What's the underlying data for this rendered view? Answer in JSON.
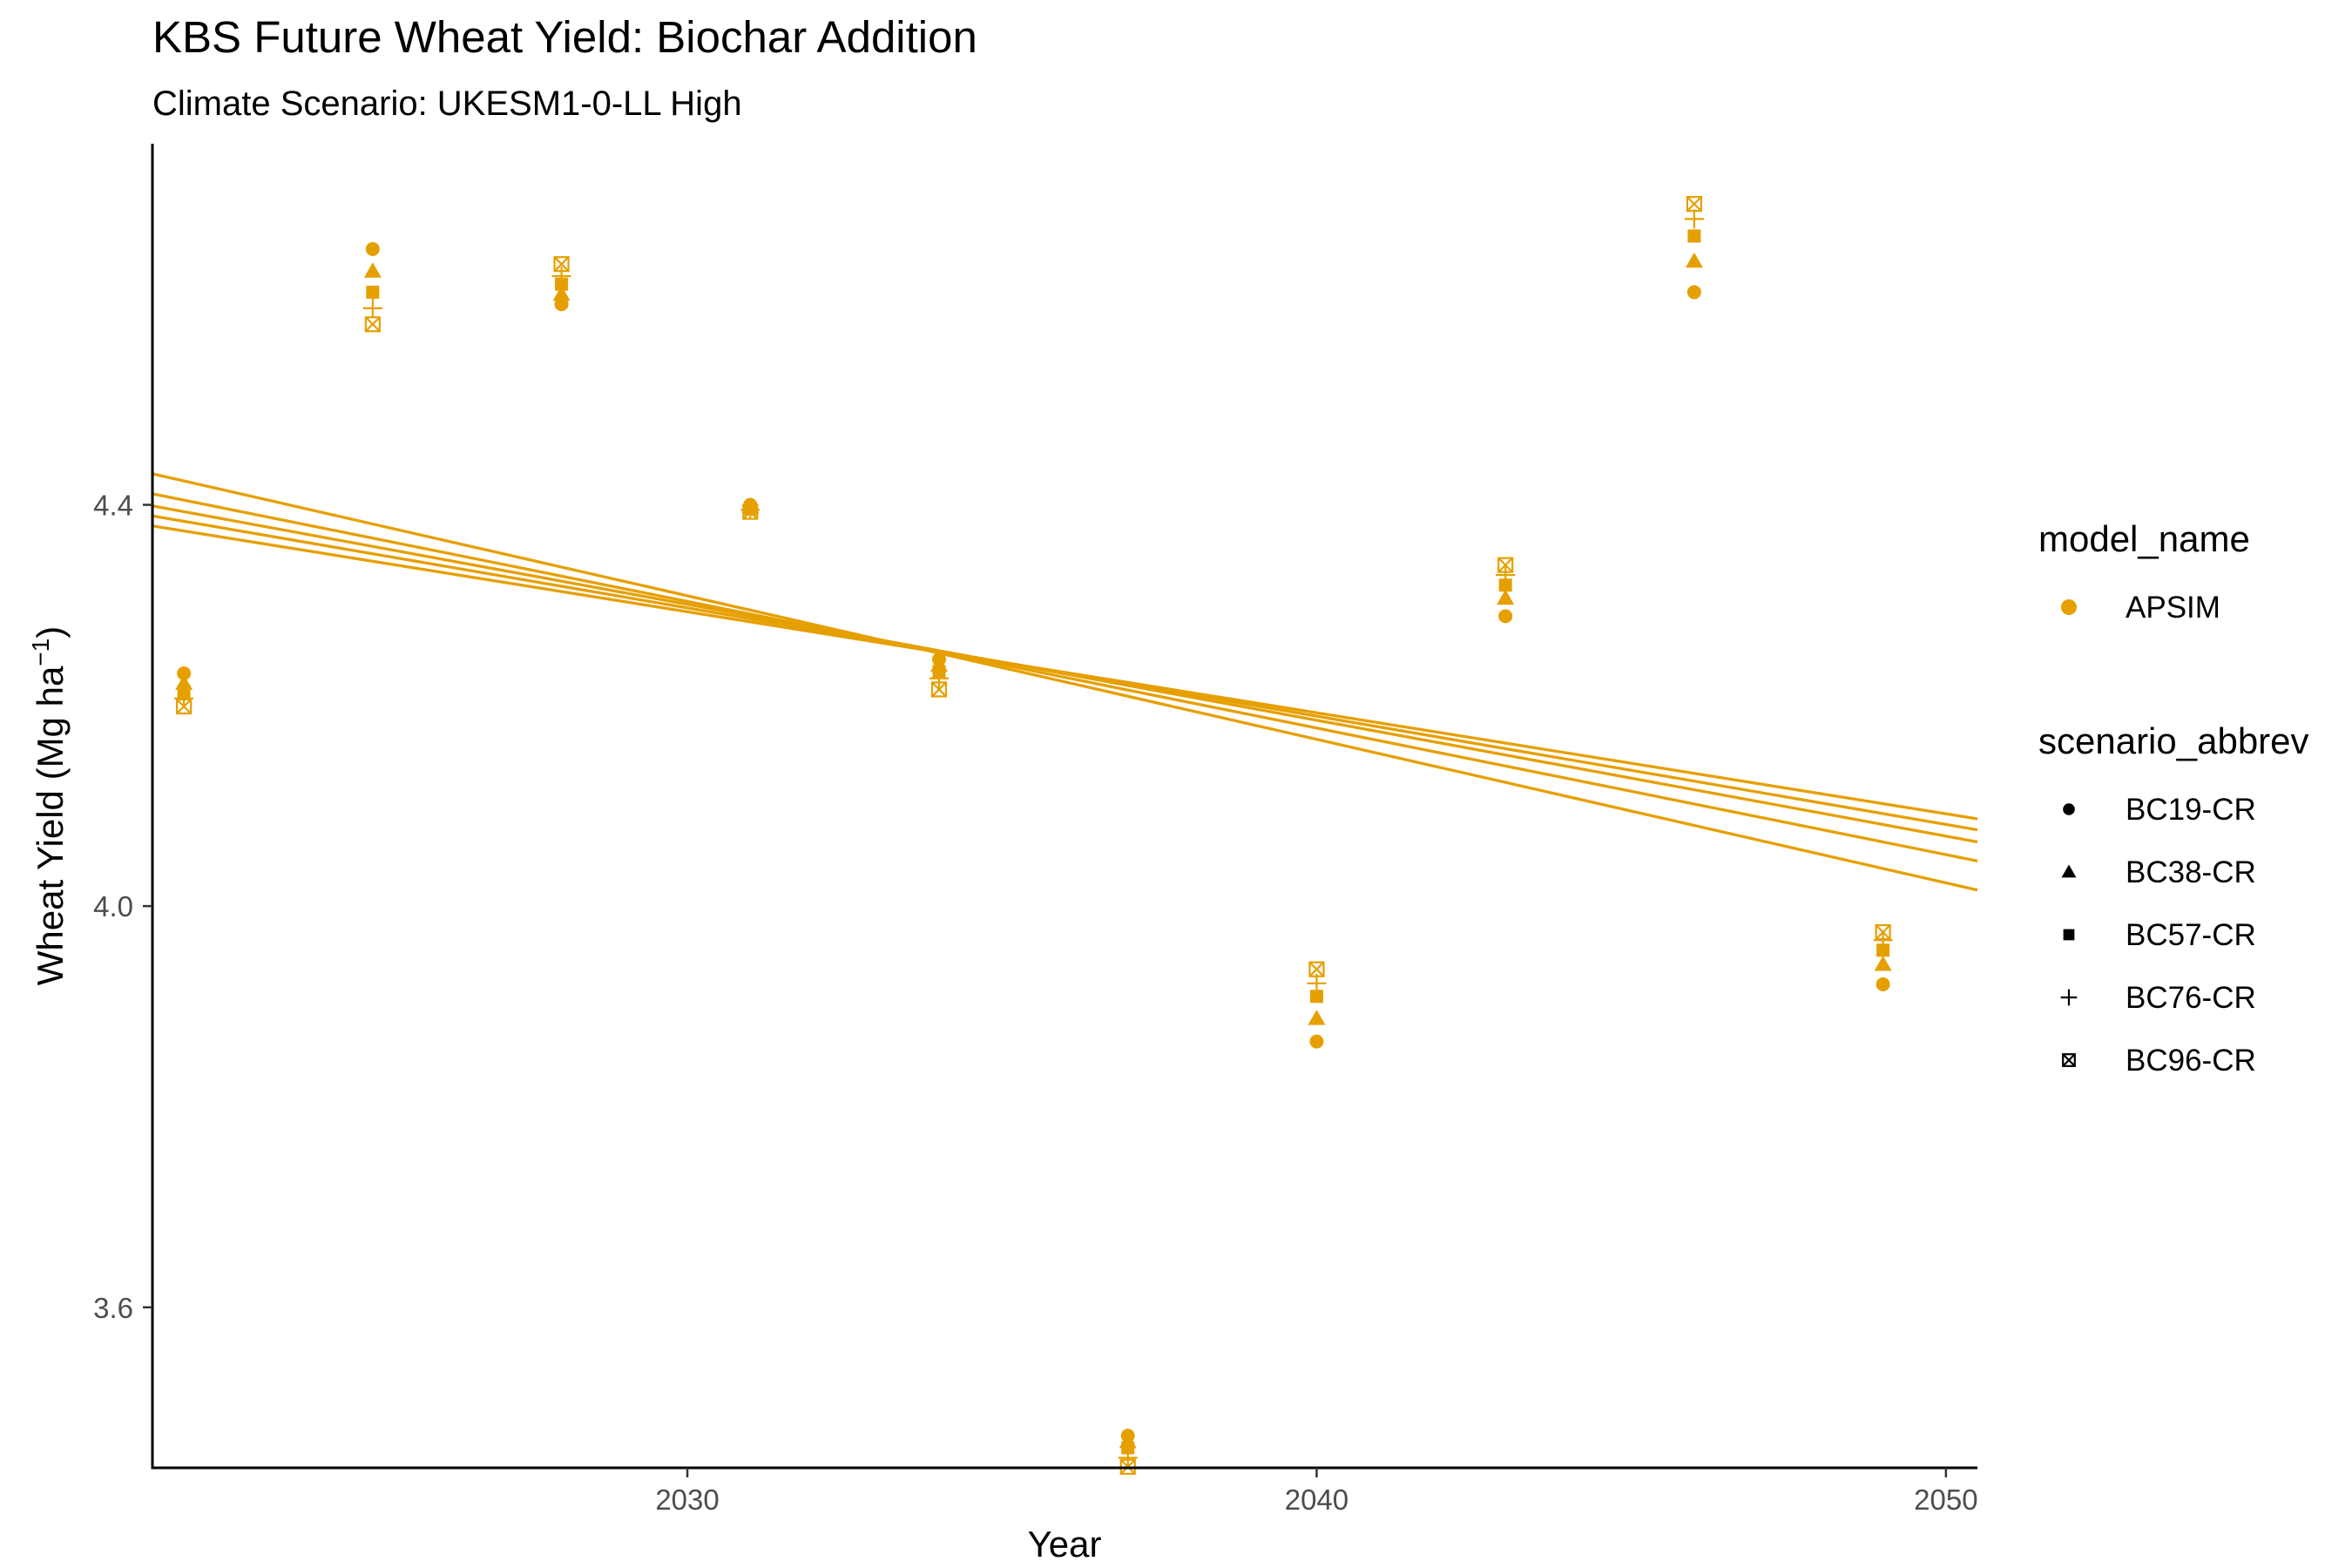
{
  "chart_data": {
    "type": "scatter",
    "title": "KBS Future Wheat Yield: Biochar Addition",
    "subtitle": "Climate Scenario: UKESM1-0-LL High",
    "xlabel": "Year",
    "ylabel_main": "Wheat Yield (Mg ha",
    "ylabel_sup": "−1",
    "ylabel_close": ")",
    "xlim": [
      2021.5,
      2050.5
    ],
    "ylim": [
      3.44,
      4.76
    ],
    "xticks": [
      2030,
      2040,
      2050
    ],
    "yticks": [
      3.6,
      4.0,
      4.4
    ],
    "ytick_labels": [
      "3.6",
      "4.0",
      "4.4"
    ],
    "grid": false,
    "color": "#E69F00",
    "x": [
      2022,
      2025,
      2028,
      2031,
      2034,
      2037,
      2040,
      2043,
      2046,
      2049
    ],
    "series": [
      {
        "name": "BC19-CR",
        "shape": "circle",
        "values": [
          4.232,
          4.655,
          4.6,
          4.4,
          4.246,
          3.472,
          3.865,
          4.289,
          4.612,
          3.922
        ]
      },
      {
        "name": "BC38-CR",
        "shape": "triangle",
        "values": [
          4.222,
          4.633,
          4.61,
          4.398,
          4.24,
          3.466,
          3.888,
          4.307,
          4.643,
          3.942
        ]
      },
      {
        "name": "BC57-CR",
        "shape": "square",
        "values": [
          4.214,
          4.612,
          4.62,
          4.396,
          4.234,
          3.46,
          3.91,
          4.32,
          4.668,
          3.956
        ]
      },
      {
        "name": "BC76-CR",
        "shape": "plus",
        "values": [
          4.207,
          4.596,
          4.628,
          4.395,
          4.227,
          3.45,
          3.923,
          4.33,
          4.685,
          3.966
        ]
      },
      {
        "name": "BC96-CR",
        "shape": "boxx",
        "values": [
          4.199,
          4.58,
          4.64,
          4.393,
          4.216,
          3.441,
          3.937,
          4.34,
          4.7,
          3.974
        ]
      }
    ],
    "trend_lines": [
      {
        "name": "BC19-CR",
        "y_start": 4.379,
        "y_end": 4.087
      },
      {
        "name": "BC38-CR",
        "y_start": 4.389,
        "y_end": 4.076
      },
      {
        "name": "BC57-CR",
        "y_start": 4.399,
        "y_end": 4.064
      },
      {
        "name": "BC76-CR",
        "y_start": 4.411,
        "y_end": 4.045
      },
      {
        "name": "BC96-CR",
        "y_start": 4.431,
        "y_end": 4.016
      }
    ],
    "legend": {
      "placement": "right",
      "model_title": "model_name",
      "model_entries": [
        "APSIM"
      ],
      "scenario_title": "scenario_abbrev",
      "scenario_entries": [
        "BC19-CR",
        "BC38-CR",
        "BC57-CR",
        "BC76-CR",
        "BC96-CR"
      ]
    }
  }
}
